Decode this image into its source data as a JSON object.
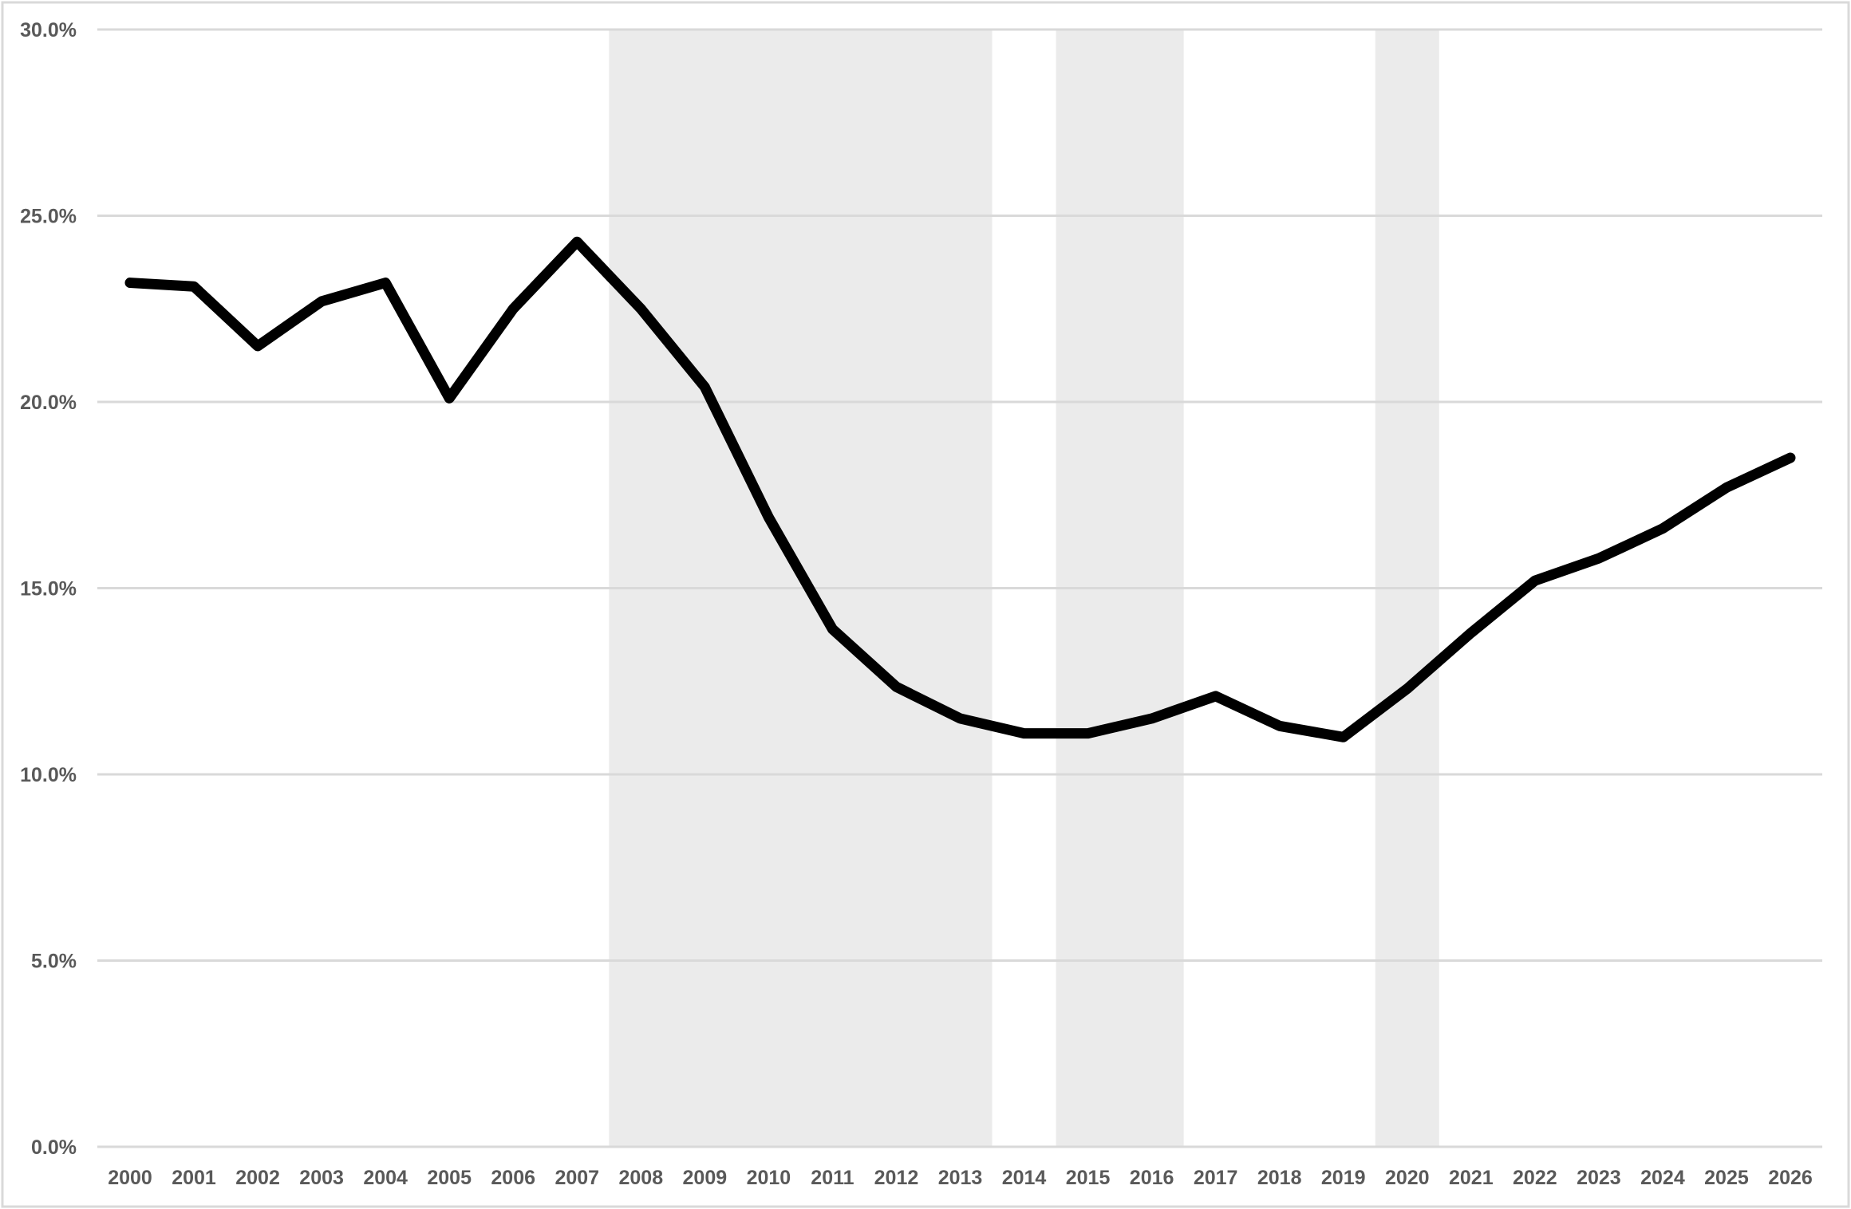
{
  "chart_data": {
    "type": "line",
    "title": "",
    "xlabel": "",
    "ylabel": "",
    "x": [
      2000,
      2001,
      2002,
      2003,
      2004,
      2005,
      2006,
      2007,
      2008,
      2009,
      2010,
      2011,
      2012,
      2013,
      2014,
      2015,
      2016,
      2017,
      2018,
      2019,
      2020,
      2021,
      2022,
      2023,
      2024,
      2025,
      2026
    ],
    "x_tick_labels": [
      "2000",
      "2001",
      "2002",
      "2003",
      "2004",
      "2005",
      "2006",
      "2007",
      "2008",
      "2009",
      "2010",
      "2011",
      "2012",
      "2013",
      "2014",
      "2015",
      "2016",
      "2017",
      "2018",
      "2019",
      "2020",
      "2021",
      "2022",
      "2023",
      "2024",
      "2025",
      "2026"
    ],
    "series": [
      {
        "values": [
          23.2,
          23.1,
          21.5,
          22.7,
          23.2,
          20.1,
          22.5,
          24.3,
          22.5,
          20.4,
          16.9,
          13.9,
          12.35,
          11.5,
          11.1,
          11.1,
          11.5,
          12.1,
          11.3,
          11.0,
          12.3,
          13.8,
          15.2,
          15.8,
          16.6,
          17.7,
          18.5
        ],
        "color": "#000000"
      }
    ],
    "ylim": [
      0,
      30
    ],
    "y_ticks": [
      0,
      5,
      10,
      15,
      20,
      25,
      30
    ],
    "y_tick_labels": [
      "0.0%",
      "5.0%",
      "10.0%",
      "15.0%",
      "20.0%",
      "25.0%",
      "30.0%"
    ],
    "shaded_ranges": [
      [
        2007.5,
        2013.5
      ],
      [
        2014.5,
        2016.5
      ],
      [
        2019.5,
        2020.5
      ]
    ],
    "grid": true,
    "legend": "none",
    "colors": {
      "shade": "#ebebeb",
      "grid": "#d9d9d9",
      "text": "#595959",
      "line": "#000000"
    }
  }
}
